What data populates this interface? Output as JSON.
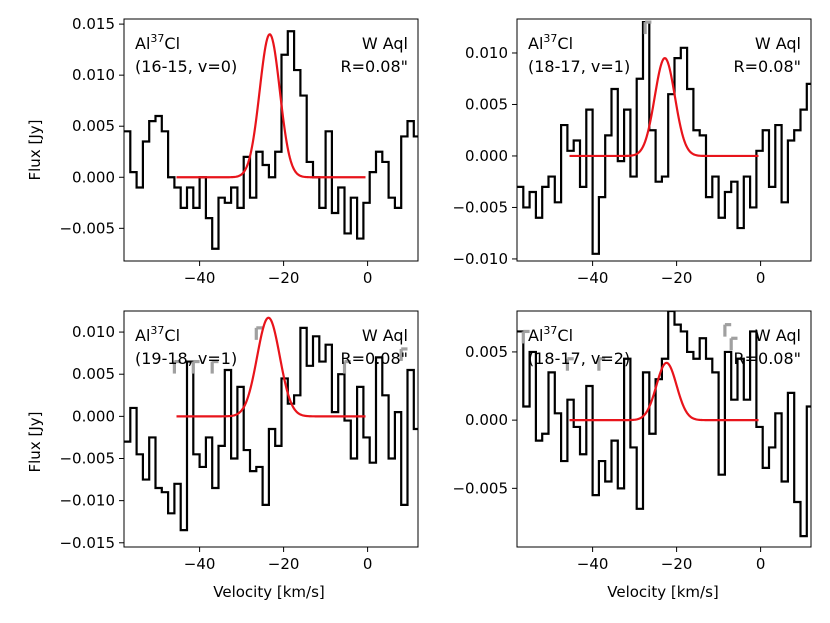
{
  "figure": {
    "ylabel": "Flux [Jy]",
    "xlabel": "Velocity [km/s]"
  },
  "chart_data": [
    {
      "type": "line",
      "species_main": "Al",
      "species_sup": "37",
      "species_tail": "Cl",
      "transition": "(16-15, v=0)",
      "star": "W Aql",
      "aperture": "R=0.08\"",
      "xlim": [
        -58,
        12
      ],
      "ylim": [
        -0.0082,
        0.0155
      ],
      "xticks": [
        -40,
        -20,
        0
      ],
      "xtick_labels": [
        "−40",
        "−20",
        "0"
      ],
      "yticks": [
        -0.005,
        0.0,
        0.005,
        0.01,
        0.015
      ],
      "ytick_labels": [
        "−0.005",
        "0.000",
        "0.005",
        "0.010",
        "0.015"
      ],
      "show_ylabel": true,
      "show_xlabel": false,
      "model": {
        "amp": 0.014,
        "center": -23.3,
        "sigma": 2.4,
        "x_range": [
          -45.5,
          -0.5
        ],
        "color": "#e8141b"
      },
      "spectrum": {
        "x0": -58,
        "dx": 1.5,
        "color": "#000000",
        "values": [
          0.0045,
          0.0005,
          -0.001,
          0.0035,
          0.0055,
          0.006,
          0.0045,
          0.0,
          -0.001,
          -0.003,
          -0.001,
          -0.003,
          0.0,
          -0.004,
          -0.007,
          -0.002,
          -0.0025,
          -0.001,
          -0.003,
          0.002,
          -0.002,
          0.0025,
          0.0012,
          0.0,
          0.0025,
          0.012,
          0.0143,
          0.0105,
          0.008,
          0.0015,
          0.0,
          -0.003,
          0.0045,
          -0.0035,
          -0.001,
          -0.0055,
          -0.002,
          -0.006,
          -0.0025,
          0.0005,
          0.0025,
          0.0015,
          -0.002,
          -0.003,
          0.004,
          0.0055,
          0.004
        ]
      },
      "flagged": []
    },
    {
      "type": "line",
      "species_main": "Al",
      "species_sup": "37",
      "species_tail": "Cl",
      "transition": "(18-17, v=1)",
      "star": "W Aql",
      "aperture": "R=0.08\"",
      "xlim": [
        -58,
        12
      ],
      "ylim": [
        -0.0102,
        0.0133
      ],
      "xticks": [
        -40,
        -20,
        0
      ],
      "xtick_labels": [
        "−40",
        "−20",
        "0"
      ],
      "yticks": [
        -0.01,
        -0.005,
        0.0,
        0.005,
        0.01
      ],
      "ytick_labels": [
        "−0.010",
        "−0.005",
        "0.000",
        "0.005",
        "0.010"
      ],
      "show_ylabel": false,
      "show_xlabel": false,
      "model": {
        "amp": 0.0095,
        "center": -22.8,
        "sigma": 2.4,
        "x_range": [
          -45.5,
          -0.5
        ],
        "color": "#e8141b"
      },
      "spectrum": {
        "x0": -58,
        "dx": 1.5,
        "color": "#000000",
        "values": [
          -0.003,
          -0.005,
          -0.0035,
          -0.006,
          -0.003,
          -0.002,
          -0.0045,
          0.003,
          0.0005,
          0.0015,
          -0.003,
          0.0045,
          -0.0095,
          -0.004,
          0.002,
          0.0065,
          -0.0005,
          0.0045,
          -0.002,
          0.0075,
          0.013,
          0.0025,
          -0.0025,
          -0.002,
          0.006,
          0.0095,
          0.0105,
          0.0065,
          0.0025,
          0.002,
          -0.004,
          -0.002,
          -0.006,
          -0.0035,
          -0.0025,
          -0.007,
          -0.002,
          -0.005,
          0.0005,
          0.0025,
          -0.003,
          0.003,
          -0.0045,
          0.0015,
          0.0025,
          0.0045,
          0.007
        ]
      },
      "flagged": [
        [
          -27.5,
          -26.0,
          0.013
        ]
      ]
    },
    {
      "type": "line",
      "species_main": "Al",
      "species_sup": "37",
      "species_tail": "Cl",
      "transition": "(19-18, v=1)",
      "star": "W Aql",
      "aperture": "R=0.08\"",
      "xlim": [
        -58,
        12
      ],
      "ylim": [
        -0.0155,
        0.0125
      ],
      "xticks": [
        -40,
        -20,
        0
      ],
      "xtick_labels": [
        "−40",
        "−20",
        "0"
      ],
      "yticks": [
        -0.015,
        -0.01,
        -0.005,
        0.0,
        0.005,
        0.01
      ],
      "ytick_labels": [
        "−0.015",
        "−0.010",
        "−0.005",
        "0.000",
        "0.005",
        "0.010"
      ],
      "show_ylabel": true,
      "show_xlabel": true,
      "model": {
        "amp": 0.0117,
        "center": -23.6,
        "sigma": 2.7,
        "x_range": [
          -45.5,
          -0.5
        ],
        "color": "#e8141b"
      },
      "spectrum": {
        "x0": -58,
        "dx": 1.5,
        "color": "#000000",
        "values": [
          -0.003,
          0.001,
          -0.0045,
          -0.0075,
          -0.0025,
          -0.0085,
          -0.009,
          -0.0115,
          -0.008,
          -0.0135,
          0.0065,
          -0.0045,
          -0.006,
          -0.0025,
          -0.0085,
          -0.0035,
          0.0055,
          -0.005,
          0.0035,
          -0.004,
          -0.0065,
          -0.006,
          -0.0105,
          -0.0015,
          -0.0035,
          0.0045,
          0.0015,
          0.0025,
          0.0105,
          0.006,
          0.0095,
          0.0065,
          0.0085,
          0.0005,
          0.005,
          -0.0005,
          -0.005,
          0.0035,
          -0.0025,
          -0.0055,
          0.007,
          0.0025,
          -0.005,
          0.0005,
          -0.0105,
          0.0055,
          -0.0015
        ]
      },
      "flagged": [
        [
          -46.0,
          -44.5,
          0.0065
        ],
        [
          -41.5,
          -40.0,
          0.0065
        ],
        [
          -37.0,
          -35.5,
          0.0065
        ],
        [
          -26.5,
          -25.0,
          0.0105
        ],
        [
          -5.5,
          -4.0,
          0.0065
        ],
        [
          8.0,
          9.5,
          0.008
        ]
      ]
    },
    {
      "type": "line",
      "species_main": "Al",
      "species_sup": "37",
      "species_tail": "Cl",
      "transition": "(18-17, v=2)",
      "star": "W Aql",
      "aperture": "R=0.08\"",
      "xlim": [
        -58,
        12
      ],
      "ylim": [
        -0.0093,
        0.008
      ],
      "xticks": [
        -40,
        -20,
        0
      ],
      "xtick_labels": [
        "−40",
        "−20",
        "0"
      ],
      "yticks": [
        -0.005,
        0.0,
        0.005
      ],
      "ytick_labels": [
        "−0.005",
        "0.000",
        "0.005"
      ],
      "show_ylabel": false,
      "show_xlabel": true,
      "model": {
        "amp": 0.0042,
        "center": -22.4,
        "sigma": 2.4,
        "x_range": [
          -45.5,
          -0.5
        ],
        "color": "#e8141b"
      },
      "spectrum": {
        "x0": -58,
        "dx": 1.5,
        "color": "#000000",
        "values": [
          0.0065,
          0.001,
          0.005,
          -0.0015,
          -0.001,
          0.0035,
          0.0005,
          -0.003,
          0.0015,
          -0.0005,
          -0.0025,
          0.0025,
          -0.0055,
          -0.003,
          -0.0045,
          -0.0015,
          -0.005,
          0.0045,
          -0.002,
          -0.0065,
          0.0035,
          -0.001,
          0.003,
          0.0045,
          0.008,
          0.007,
          0.0065,
          0.005,
          0.0045,
          0.006,
          0.0045,
          0.0035,
          -0.004,
          0.005,
          0.0015,
          0.0045,
          0.0015,
          0.0065,
          -0.0005,
          -0.0035,
          -0.002,
          0.0005,
          -0.0045,
          0.002,
          -0.006,
          -0.0085,
          0.001
        ]
      },
      "flagged": [
        [
          -56.5,
          -55.0,
          0.0065
        ],
        [
          -46.0,
          -44.5,
          0.0045
        ],
        [
          -38.5,
          -37.0,
          0.0045
        ],
        [
          -8.5,
          -7.0,
          0.007
        ],
        [
          -7.0,
          -5.5,
          0.006
        ]
      ]
    }
  ]
}
